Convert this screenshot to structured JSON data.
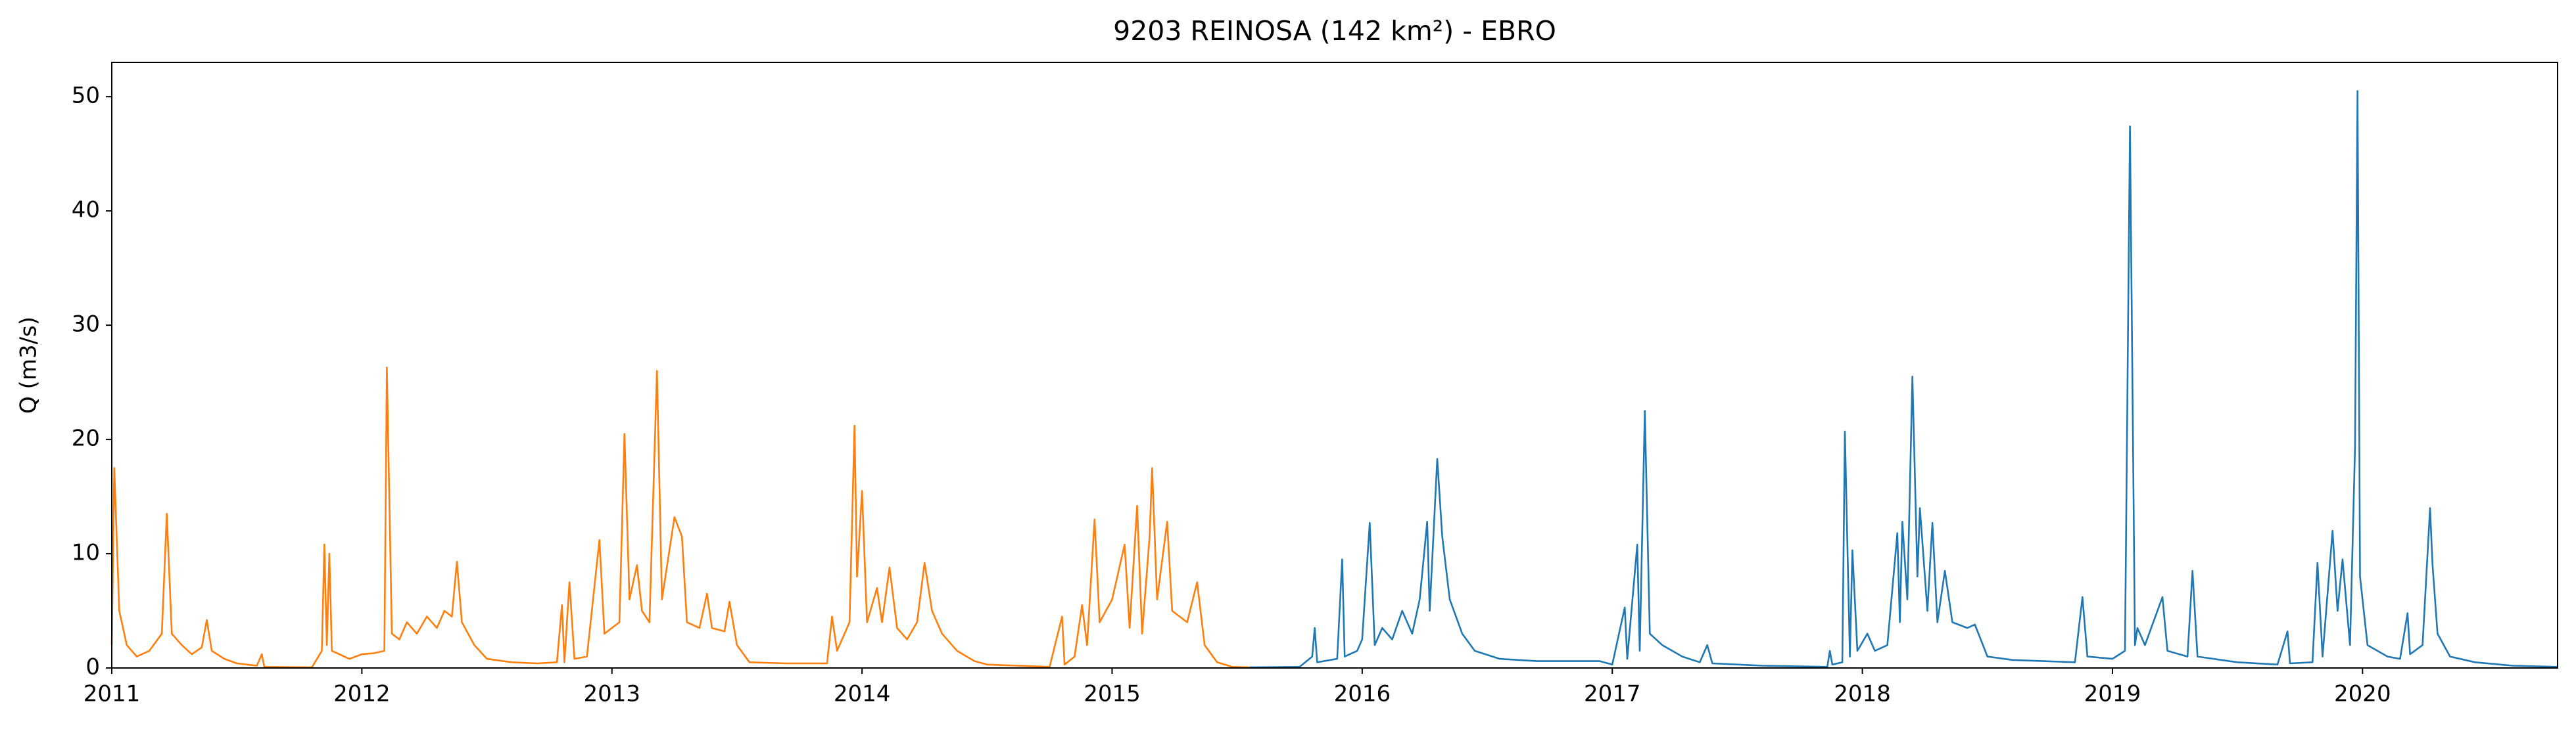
{
  "chart_data": {
    "type": "line",
    "title": "9203 REINOSA (142 km²) - EBRO",
    "ylabel": "Q (m3/s)",
    "xlim": [
      2011,
      2020.78
    ],
    "xticks": [
      2011,
      2012,
      2013,
      2014,
      2015,
      2016,
      2017,
      2018,
      2019,
      2020
    ],
    "ylim": [
      0,
      53
    ],
    "yticks": [
      0,
      10,
      20,
      30,
      40,
      50
    ],
    "grid": false,
    "series": [
      {
        "color": "#ff7f0e",
        "x": [
          2011.0,
          2011.01,
          2011.03,
          2011.06,
          2011.1,
          2011.15,
          2011.2,
          2011.22,
          2011.24,
          2011.28,
          2011.32,
          2011.36,
          2011.38,
          2011.4,
          2011.45,
          2011.5,
          2011.58,
          2011.6,
          2011.61,
          2011.8,
          2011.84,
          2011.85,
          2011.86,
          2011.87,
          2011.88,
          2011.95,
          2012.0,
          2012.05,
          2012.09,
          2012.1,
          2012.12,
          2012.15,
          2012.18,
          2012.22,
          2012.26,
          2012.3,
          2012.33,
          2012.36,
          2012.38,
          2012.4,
          2012.45,
          2012.5,
          2012.6,
          2012.7,
          2012.78,
          2012.8,
          2012.81,
          2012.83,
          2012.85,
          2012.9,
          2012.95,
          2012.97,
          2013.03,
          2013.05,
          2013.07,
          2013.1,
          2013.12,
          2013.15,
          2013.18,
          2013.2,
          2013.25,
          2013.28,
          2013.3,
          2013.35,
          2013.38,
          2013.4,
          2013.45,
          2013.47,
          2013.5,
          2013.55,
          2013.7,
          2013.86,
          2013.88,
          2013.9,
          2013.95,
          2013.97,
          2013.98,
          2014.0,
          2014.02,
          2014.06,
          2014.08,
          2014.11,
          2014.14,
          2014.18,
          2014.22,
          2014.25,
          2014.28,
          2014.32,
          2014.38,
          2014.45,
          2014.5,
          2014.75,
          2014.8,
          2014.81,
          2014.85,
          2014.88,
          2014.9,
          2014.93,
          2014.95,
          2015.0,
          2015.05,
          2015.07,
          2015.1,
          2015.12,
          2015.15,
          2015.16,
          2015.18,
          2015.22,
          2015.24,
          2015.3,
          2015.34,
          2015.37,
          2015.42,
          2015.48,
          2015.55
        ],
        "values": [
          2,
          17.5,
          5,
          2,
          1,
          1.5,
          3,
          13.5,
          3,
          2,
          1.2,
          1.8,
          4.2,
          1.5,
          0.8,
          0.4,
          0.2,
          1.2,
          0.1,
          0.05,
          1.5,
          10.8,
          2,
          10,
          1.5,
          0.8,
          1.2,
          1.3,
          1.5,
          26.3,
          3,
          2.5,
          4,
          3,
          4.5,
          3.5,
          5,
          4.5,
          9.3,
          4,
          2,
          0.8,
          0.5,
          0.4,
          0.5,
          5.5,
          0.5,
          7.5,
          0.8,
          1,
          11.2,
          3,
          4,
          20.5,
          6,
          9,
          5,
          4,
          26,
          6,
          13.2,
          11.5,
          4,
          3.5,
          6.5,
          3.5,
          3.2,
          5.8,
          2,
          0.5,
          0.4,
          0.4,
          4.5,
          1.5,
          4,
          21.2,
          8,
          15.5,
          4,
          7,
          4,
          8.8,
          3.5,
          2.5,
          4,
          9.2,
          5,
          3,
          1.5,
          0.6,
          0.3,
          0.1,
          4.5,
          0.3,
          1,
          5.5,
          2,
          13,
          4,
          6,
          10.8,
          3.5,
          14.2,
          3,
          11.5,
          17.5,
          6,
          12.8,
          5,
          4,
          7.5,
          2,
          0.5,
          0.1,
          0.05
        ]
      },
      {
        "color": "#1f77b4",
        "x": [
          2015.55,
          2015.75,
          2015.8,
          2015.81,
          2015.82,
          2015.9,
          2015.92,
          2015.93,
          2015.98,
          2016.0,
          2016.03,
          2016.05,
          2016.08,
          2016.12,
          2016.16,
          2016.2,
          2016.23,
          2016.26,
          2016.27,
          2016.3,
          2016.32,
          2016.35,
          2016.4,
          2016.45,
          2016.55,
          2016.7,
          2016.95,
          2017.0,
          2017.05,
          2017.06,
          2017.1,
          2017.11,
          2017.13,
          2017.15,
          2017.2,
          2017.28,
          2017.35,
          2017.38,
          2017.4,
          2017.6,
          2017.86,
          2017.87,
          2017.88,
          2017.92,
          2017.93,
          2017.95,
          2017.96,
          2017.98,
          2018.02,
          2018.05,
          2018.1,
          2018.14,
          2018.15,
          2018.16,
          2018.18,
          2018.2,
          2018.22,
          2018.23,
          2018.26,
          2018.28,
          2018.3,
          2018.33,
          2018.36,
          2018.42,
          2018.45,
          2018.5,
          2018.6,
          2018.85,
          2018.88,
          2018.9,
          2019.0,
          2019.05,
          2019.07,
          2019.09,
          2019.1,
          2019.13,
          2019.2,
          2019.22,
          2019.3,
          2019.32,
          2019.34,
          2019.5,
          2019.66,
          2019.7,
          2019.71,
          2019.8,
          2019.82,
          2019.84,
          2019.88,
          2019.9,
          2019.92,
          2019.93,
          2019.95,
          2019.97,
          2019.98,
          2019.99,
          2020.02,
          2020.1,
          2020.15,
          2020.18,
          2020.19,
          2020.24,
          2020.27,
          2020.28,
          2020.3,
          2020.35,
          2020.45,
          2020.6,
          2020.78
        ],
        "values": [
          0.05,
          0.1,
          1,
          3.5,
          0.5,
          0.8,
          9.5,
          1,
          1.5,
          2.5,
          12.7,
          2,
          3.5,
          2.5,
          5,
          3,
          6,
          12.8,
          5,
          18.3,
          11.5,
          6,
          3,
          1.5,
          0.8,
          0.6,
          0.6,
          0.3,
          5.3,
          0.8,
          10.8,
          1.5,
          22.5,
          3,
          2,
          1,
          0.5,
          2,
          0.4,
          0.2,
          0.1,
          1.5,
          0.3,
          0.5,
          20.7,
          1,
          10.3,
          1.5,
          3,
          1.5,
          2,
          11.8,
          4,
          12.8,
          6,
          25.5,
          8,
          14,
          5,
          12.7,
          4,
          8.5,
          4,
          3.5,
          3.8,
          1,
          0.7,
          0.5,
          6.2,
          1,
          0.8,
          1.5,
          47.4,
          2,
          3.5,
          2,
          6.2,
          1.5,
          1,
          8.5,
          1,
          0.5,
          0.3,
          3.2,
          0.4,
          0.5,
          9.2,
          1,
          12,
          5,
          9.5,
          7,
          2,
          19.3,
          50.5,
          8,
          2,
          1,
          0.8,
          4.8,
          1.2,
          2,
          14,
          9,
          3,
          1,
          0.5,
          0.2,
          0.1
        ]
      }
    ]
  }
}
